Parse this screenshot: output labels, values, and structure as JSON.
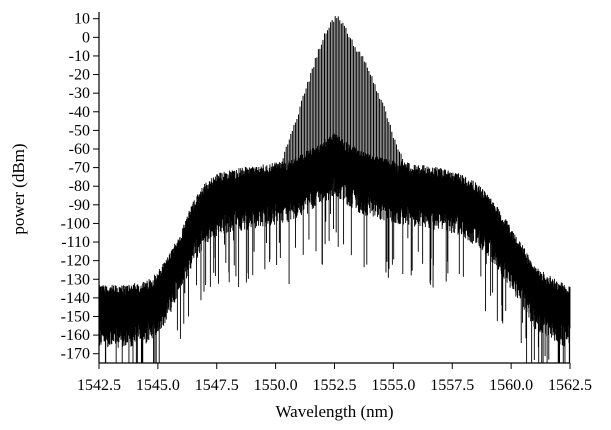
{
  "chart_data": {
    "type": "line",
    "title": "",
    "xlabel": "Wavelength (nm)",
    "ylabel": "power (dBm)",
    "xlim": [
      1542.5,
      1562.5
    ],
    "ylim": [
      -175,
      12
    ],
    "x_ticks": [
      1542.5,
      1545.0,
      1547.5,
      1550.0,
      1552.5,
      1555.0,
      1557.5,
      1560.0,
      1562.5
    ],
    "x_tick_labels": [
      "1542.5",
      "1545.0",
      "1547.5",
      "1550.0",
      "1552.5",
      "1555.0",
      "1557.5",
      "1560.0",
      "1562.5"
    ],
    "y_ticks": [
      10,
      0,
      -10,
      -20,
      -30,
      -40,
      -50,
      -60,
      -70,
      -80,
      -90,
      -100,
      -110,
      -120,
      -130,
      -140,
      -150,
      -160,
      -170
    ],
    "y_tick_labels": [
      "10",
      "0",
      "-10",
      "-20",
      "-30",
      "-40",
      "-50",
      "-60",
      "-70",
      "-80",
      "-90",
      "-100",
      "-110",
      "-120",
      "-130",
      "-140",
      "-150",
      "-160",
      "-170"
    ],
    "grid": false,
    "legend": false,
    "line_color": "#000000",
    "series": [
      {
        "noise_floor_envelope": {
          "x": [
            1542.5,
            1543.5,
            1544.5,
            1545.0,
            1545.5,
            1546.0,
            1546.5,
            1547.0,
            1547.5,
            1548.5,
            1549.5,
            1550.5,
            1551.0,
            1551.5,
            1552.0,
            1552.5,
            1553.0,
            1553.5,
            1554.0,
            1555.0,
            1556.0,
            1557.0,
            1557.5,
            1558.0,
            1558.5,
            1559.0,
            1559.5,
            1560.0,
            1560.5,
            1561.0,
            1562.0,
            1562.5
          ],
          "y": [
            -145,
            -145,
            -143,
            -138,
            -128,
            -115,
            -100,
            -90,
            -85,
            -82,
            -80,
            -78,
            -75,
            -72,
            -68,
            -63,
            -68,
            -72,
            -75,
            -78,
            -80,
            -82,
            -84,
            -86,
            -90,
            -96,
            -104,
            -114,
            -124,
            -135,
            -143,
            -145
          ]
        },
        "comb_peaks": {
          "x": [
            1549.8,
            1550.0,
            1550.2,
            1550.4,
            1550.6,
            1550.8,
            1551.0,
            1551.2,
            1551.4,
            1551.6,
            1551.8,
            1552.0,
            1552.2,
            1552.4,
            1552.6,
            1552.8,
            1553.0,
            1553.2,
            1553.4,
            1553.6,
            1553.8,
            1554.0,
            1554.2,
            1554.4,
            1554.6,
            1554.8,
            1555.0,
            1555.2,
            1555.4,
            1555.6,
            1555.8
          ],
          "y": [
            -80,
            -72,
            -68,
            -60,
            -52,
            -45,
            -38,
            -30,
            -22,
            -14,
            -6,
            0,
            6,
            10,
            13,
            9,
            5,
            0,
            -4,
            -8,
            -12,
            -18,
            -24,
            -30,
            -36,
            -44,
            -52,
            -58,
            -64,
            -70,
            -78
          ]
        }
      }
    ]
  }
}
